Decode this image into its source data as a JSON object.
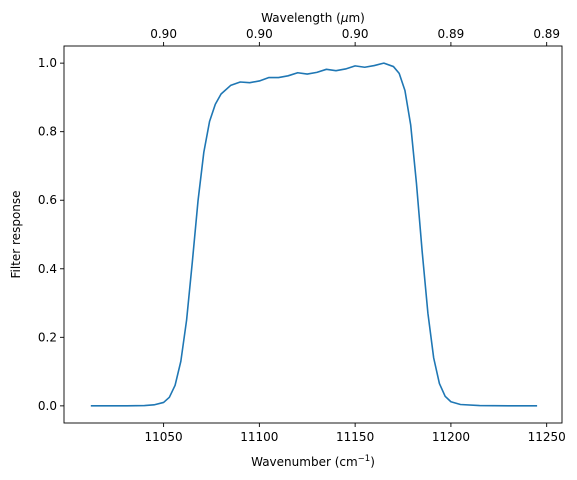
{
  "chart_data": {
    "type": "line",
    "xlabel": "Wavenumber (cm",
    "xlabel_sup": "−1",
    "xlabel_end": ")",
    "ylabel": "Filter response",
    "top_xlabel": "Wavelength (",
    "top_xlabel_mu": "μ",
    "top_xlabel_end": "m)",
    "xlim": [
      10998,
      11258
    ],
    "ylim": [
      -0.05,
      1.05
    ],
    "x_ticks": [
      11050,
      11100,
      11150,
      11200,
      11250
    ],
    "x_tick_labels": [
      "11050",
      "11100",
      "11150",
      "11200",
      "11250"
    ],
    "y_ticks": [
      0.0,
      0.2,
      0.4,
      0.6,
      0.8,
      1.0
    ],
    "y_tick_labels": [
      "0.0",
      "0.2",
      "0.4",
      "0.6",
      "0.8",
      "1.0"
    ],
    "top_ticks": [
      11050,
      11100,
      11150,
      11200,
      11250
    ],
    "top_tick_labels": [
      "0.90",
      "0.90",
      "0.90",
      "0.89",
      "0.89"
    ],
    "grid": false,
    "series": [
      {
        "color": "#1f77b4",
        "points": [
          [
            11012,
            0.0
          ],
          [
            11030,
            0.0
          ],
          [
            11040,
            0.001
          ],
          [
            11045,
            0.003
          ],
          [
            11050,
            0.01
          ],
          [
            11053,
            0.025
          ],
          [
            11056,
            0.06
          ],
          [
            11059,
            0.13
          ],
          [
            11062,
            0.25
          ],
          [
            11065,
            0.42
          ],
          [
            11068,
            0.6
          ],
          [
            11071,
            0.74
          ],
          [
            11074,
            0.83
          ],
          [
            11077,
            0.88
          ],
          [
            11080,
            0.91
          ],
          [
            11085,
            0.935
          ],
          [
            11090,
            0.945
          ],
          [
            11095,
            0.943
          ],
          [
            11100,
            0.948
          ],
          [
            11105,
            0.958
          ],
          [
            11110,
            0.958
          ],
          [
            11115,
            0.963
          ],
          [
            11120,
            0.972
          ],
          [
            11125,
            0.968
          ],
          [
            11130,
            0.973
          ],
          [
            11135,
            0.982
          ],
          [
            11140,
            0.978
          ],
          [
            11145,
            0.983
          ],
          [
            11150,
            0.992
          ],
          [
            11155,
            0.988
          ],
          [
            11160,
            0.993
          ],
          [
            11165,
            1.0
          ],
          [
            11170,
            0.99
          ],
          [
            11173,
            0.97
          ],
          [
            11176,
            0.92
          ],
          [
            11179,
            0.82
          ],
          [
            11182,
            0.65
          ],
          [
            11185,
            0.45
          ],
          [
            11188,
            0.27
          ],
          [
            11191,
            0.14
          ],
          [
            11194,
            0.065
          ],
          [
            11197,
            0.028
          ],
          [
            11200,
            0.012
          ],
          [
            11205,
            0.004
          ],
          [
            11215,
            0.001
          ],
          [
            11230,
            0.0
          ],
          [
            11245,
            0.0
          ]
        ]
      }
    ]
  }
}
